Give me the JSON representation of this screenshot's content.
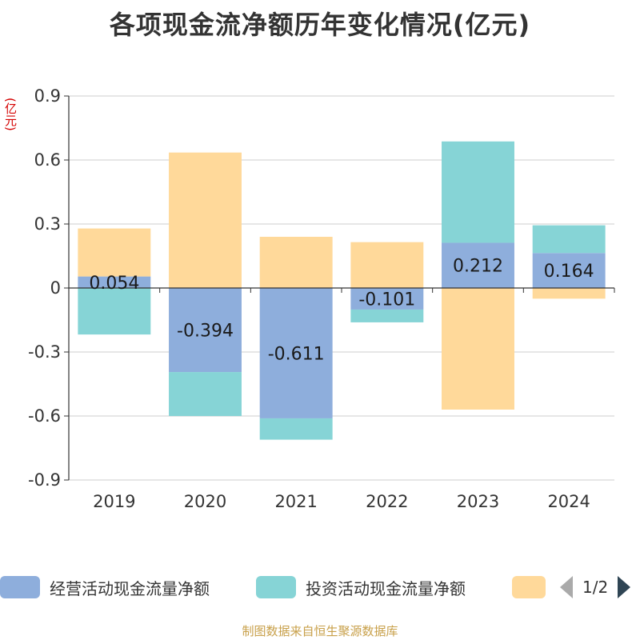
{
  "chart_data": {
    "type": "bar",
    "title": "各项现金流净额历年变化情况(亿元)",
    "ylabel": "(亿元)",
    "categories": [
      "2019",
      "2020",
      "2021",
      "2022",
      "2023",
      "2024"
    ],
    "ylim": [
      -0.9,
      0.9
    ],
    "yticks": [
      0.9,
      0.6,
      0.3,
      0,
      -0.3,
      -0.6,
      -0.9
    ],
    "ytick_labels": [
      "0.9",
      "0.6",
      "0.3",
      "0",
      "-0.3",
      "-0.6",
      "-0.9"
    ],
    "stacked": true,
    "grid": true,
    "legend_position": "bottom",
    "series": [
      {
        "name": "经营活动现金流量净额",
        "color": "#8eaedc",
        "values": [
          0.054,
          -0.394,
          -0.611,
          -0.101,
          0.212,
          0.164
        ],
        "data_labels": [
          "0.054",
          "-0.394",
          "-0.611",
          "-0.101",
          "0.212",
          "0.164"
        ]
      },
      {
        "name": "投资活动现金流量净额",
        "color": "#86d4d6",
        "values": [
          -0.218,
          -0.206,
          -0.1,
          -0.06,
          0.475,
          0.13
        ]
      },
      {
        "name": "",
        "color": "#ffd99a",
        "values": [
          0.225,
          0.635,
          0.24,
          0.215,
          -0.57,
          -0.05
        ]
      }
    ]
  },
  "legend": {
    "pager": "1/2"
  },
  "footer": {
    "source": "制图数据来自恒生聚源数据库"
  }
}
